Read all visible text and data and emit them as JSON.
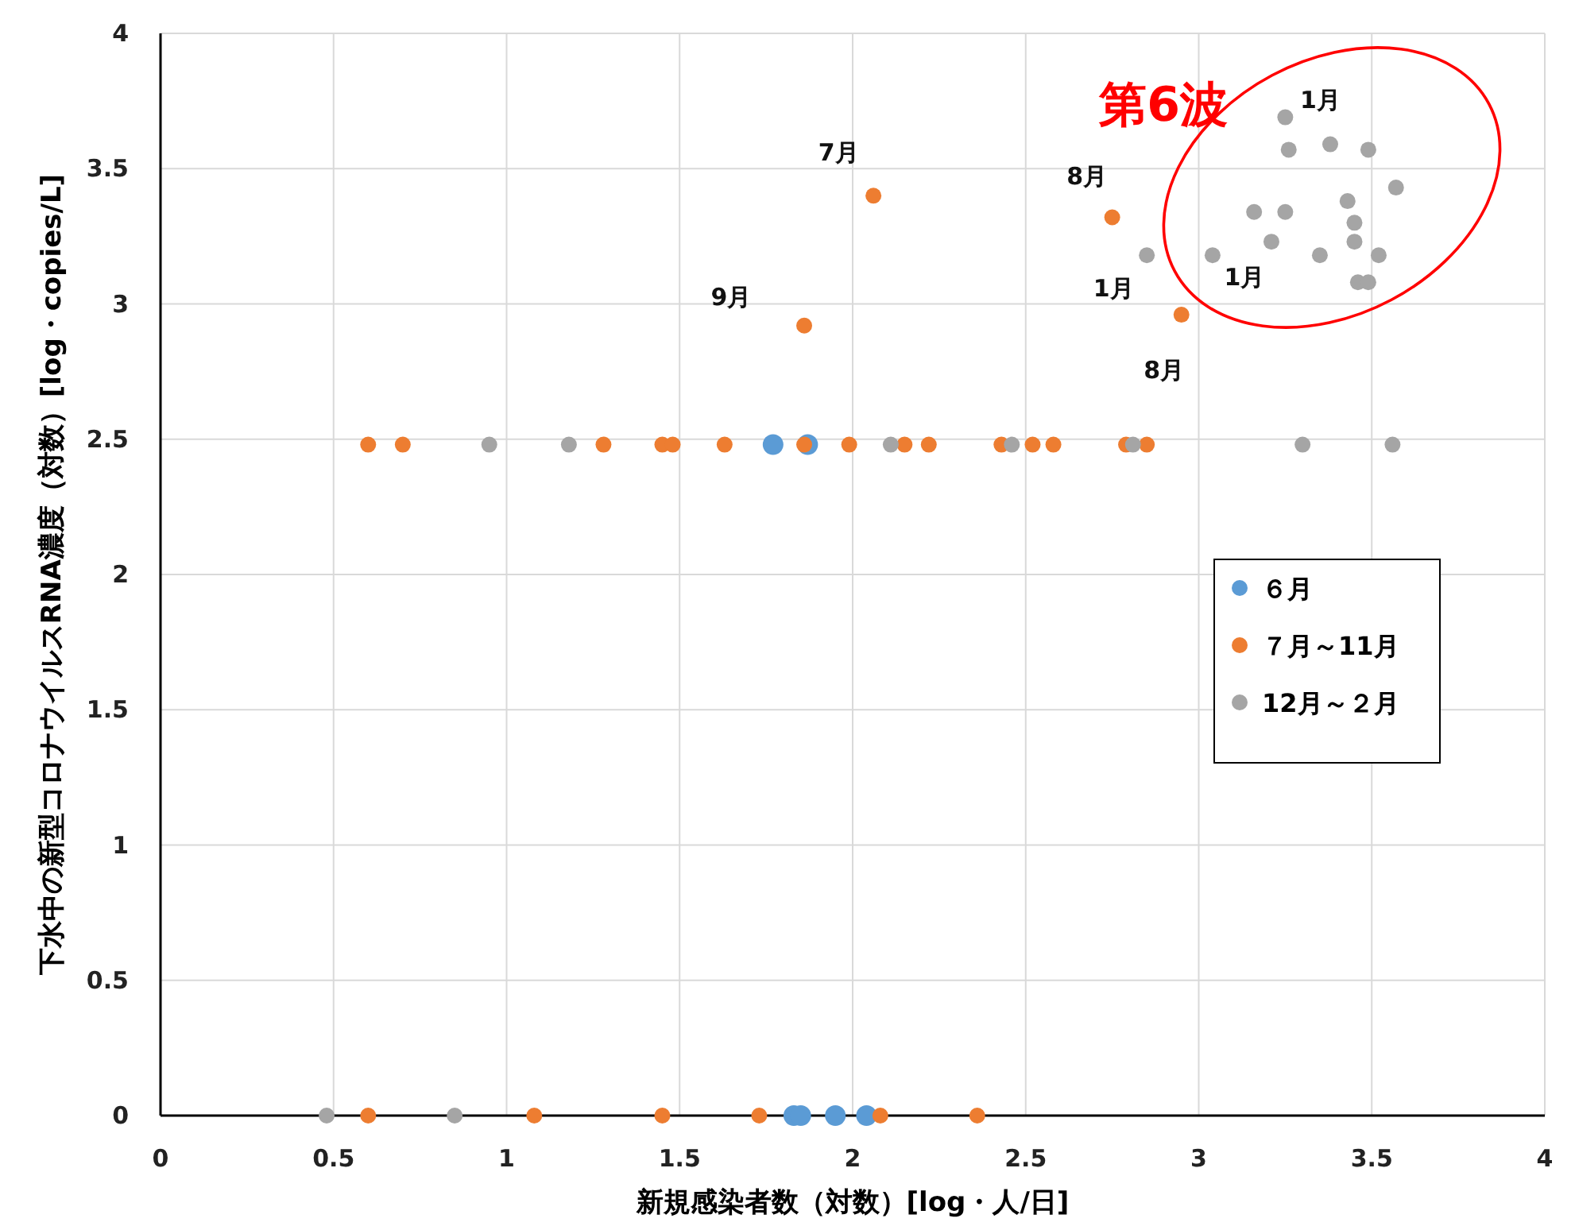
{
  "chart_data": {
    "type": "scatter",
    "xlabel": "新規感染者数（対数）[log・人/日]",
    "ylabel": "下水中の新型コロナウイルスRNA濃度（対数）[log・copies/L]",
    "xlim": [
      0,
      4
    ],
    "xticks": [
      0,
      0.5,
      1,
      1.5,
      2,
      2.5,
      3,
      3.5,
      4
    ],
    "ylim": [
      0,
      4
    ],
    "yticks": [
      0,
      0.5,
      1,
      1.5,
      2,
      2.5,
      3,
      3.5,
      4
    ],
    "grid": true,
    "legend": "right",
    "marker": "circle",
    "series": [
      {
        "name": "６月",
        "color": "#5b9bd5",
        "x": [
          1.77,
          1.87,
          1.83,
          1.85,
          1.95,
          2.04
        ],
        "values": [
          2.48,
          2.48,
          0,
          0,
          0,
          0
        ]
      },
      {
        "name": "７月～11月",
        "color": "#ed7d31",
        "x": [
          0.6,
          1.08,
          1.45,
          1.73,
          2.08,
          2.36,
          0.6,
          0.7,
          1.28,
          1.45,
          1.48,
          1.63,
          1.86,
          1.99,
          2.15,
          2.22,
          2.43,
          2.52,
          2.58,
          2.79,
          2.85,
          2.06,
          1.86,
          2.75,
          2.95
        ],
        "values": [
          0,
          0,
          0,
          0,
          0,
          0,
          2.48,
          2.48,
          2.48,
          2.48,
          2.48,
          2.48,
          2.48,
          2.48,
          2.48,
          2.48,
          2.48,
          2.48,
          2.48,
          2.48,
          2.48,
          3.4,
          2.92,
          3.32,
          2.96
        ]
      },
      {
        "name": "12月～２月",
        "color": "#a5a5a5",
        "x": [
          0.48,
          0.85,
          0.95,
          1.18,
          2.11,
          2.46,
          2.81,
          3.3,
          3.56,
          3.25,
          3.26,
          3.38,
          3.49,
          3.57,
          3.16,
          3.25,
          3.43,
          3.45,
          3.21,
          3.45,
          2.85,
          3.04,
          3.35,
          3.52,
          3.46,
          3.49
        ],
        "values": [
          0,
          0,
          2.48,
          2.48,
          2.48,
          2.48,
          2.48,
          2.48,
          2.48,
          3.69,
          3.57,
          3.59,
          3.57,
          3.43,
          3.34,
          3.34,
          3.38,
          3.3,
          3.23,
          3.23,
          3.18,
          3.18,
          3.18,
          3.18,
          3.08,
          3.08
        ]
      }
    ],
    "annotations": [
      "第6波",
      {
        "text": "7月",
        "x": 2.06,
        "y": 3.4
      },
      {
        "text": "9月",
        "x": 1.86,
        "y": 2.92
      },
      {
        "text": "8月",
        "x": 2.75,
        "y": 3.32
      },
      {
        "text": "8月",
        "x": 2.95,
        "y": 2.96
      },
      {
        "text": "1月",
        "x": 3.25,
        "y": 3.69
      },
      {
        "text": "1月",
        "x": 2.85,
        "y": 3.18
      },
      {
        "text": "1月",
        "x": 3.04,
        "y": 3.18
      }
    ]
  }
}
